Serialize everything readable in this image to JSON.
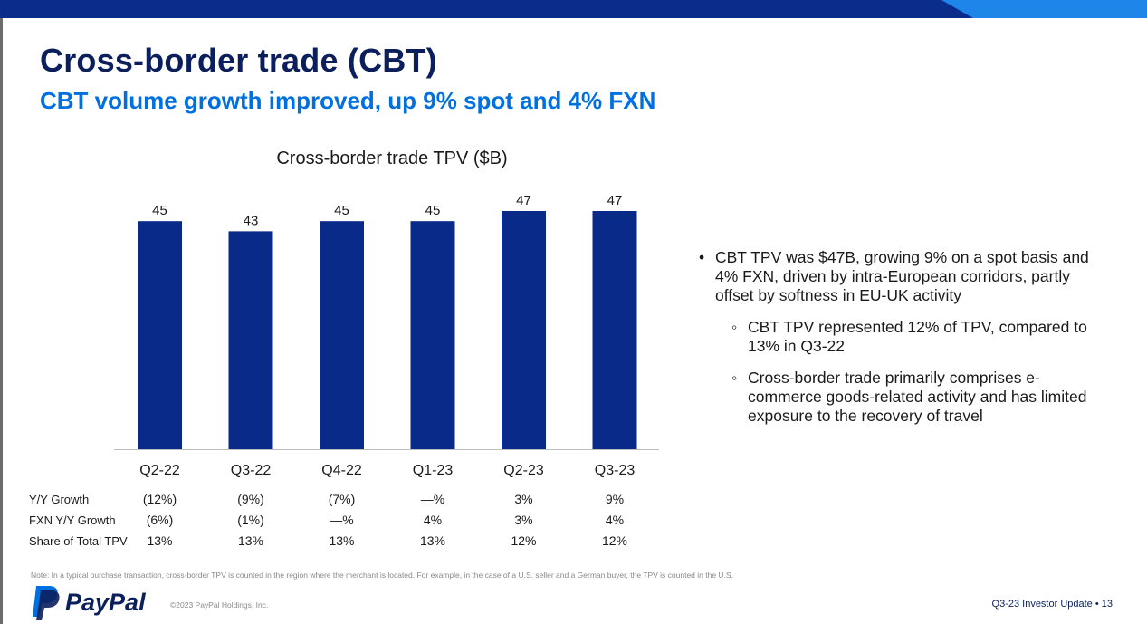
{
  "colors": {
    "navy": "#0b1f5c",
    "bar": "#0a2a8a",
    "accent": "#0070e0",
    "band_dark": "#0c2c8c",
    "band_light": "#1d86e8"
  },
  "slide": {
    "title": "Cross-border trade (CBT)",
    "subtitle": "CBT volume growth improved, up 9% spot and 4% FXN"
  },
  "chart_data": {
    "type": "bar",
    "title": "Cross-border trade TPV ($B)",
    "categories": [
      "Q2-22",
      "Q3-22",
      "Q4-22",
      "Q1-23",
      "Q2-23",
      "Q3-23"
    ],
    "values": [
      45,
      43,
      45,
      45,
      47,
      47
    ],
    "xlabel": "",
    "ylabel": "",
    "ylim": [
      0,
      47
    ],
    "grid": false,
    "table_rows": [
      {
        "label": "Y/Y Growth",
        "values": [
          "(12%)",
          "(9%)",
          "(7%)",
          "—%",
          "3%",
          "9%"
        ]
      },
      {
        "label": "FXN Y/Y Growth",
        "values": [
          "(6%)",
          "(1%)",
          "—%",
          "4%",
          "3%",
          "4%"
        ]
      },
      {
        "label": "Share of Total TPV",
        "values": [
          "13%",
          "13%",
          "13%",
          "13%",
          "12%",
          "12%"
        ]
      }
    ]
  },
  "bullets": {
    "main": "CBT TPV was $47B, growing 9% on a spot basis and 4% FXN, driven by intra-European corridors, partly offset by softness in EU-UK activity",
    "sub": [
      "CBT TPV represented 12% of TPV, compared to 13% in Q3-22",
      "Cross-border trade primarily comprises e-commerce goods-related activity and has limited exposure to the recovery of travel"
    ],
    "marker": "•",
    "sub_marker": "◦"
  },
  "footer": {
    "note": "Note: In a typical purchase transaction, cross-border TPV is counted in the region where the merchant is located. For example, in the case of a U.S. seller and a German buyer, the TPV is counted in the U.S.",
    "brand": "PayPal",
    "brand_icon": "paypal-logo",
    "copyright": "©2023 PayPal Holdings, Inc.",
    "right": "Q3-23 Investor Update • 13"
  }
}
